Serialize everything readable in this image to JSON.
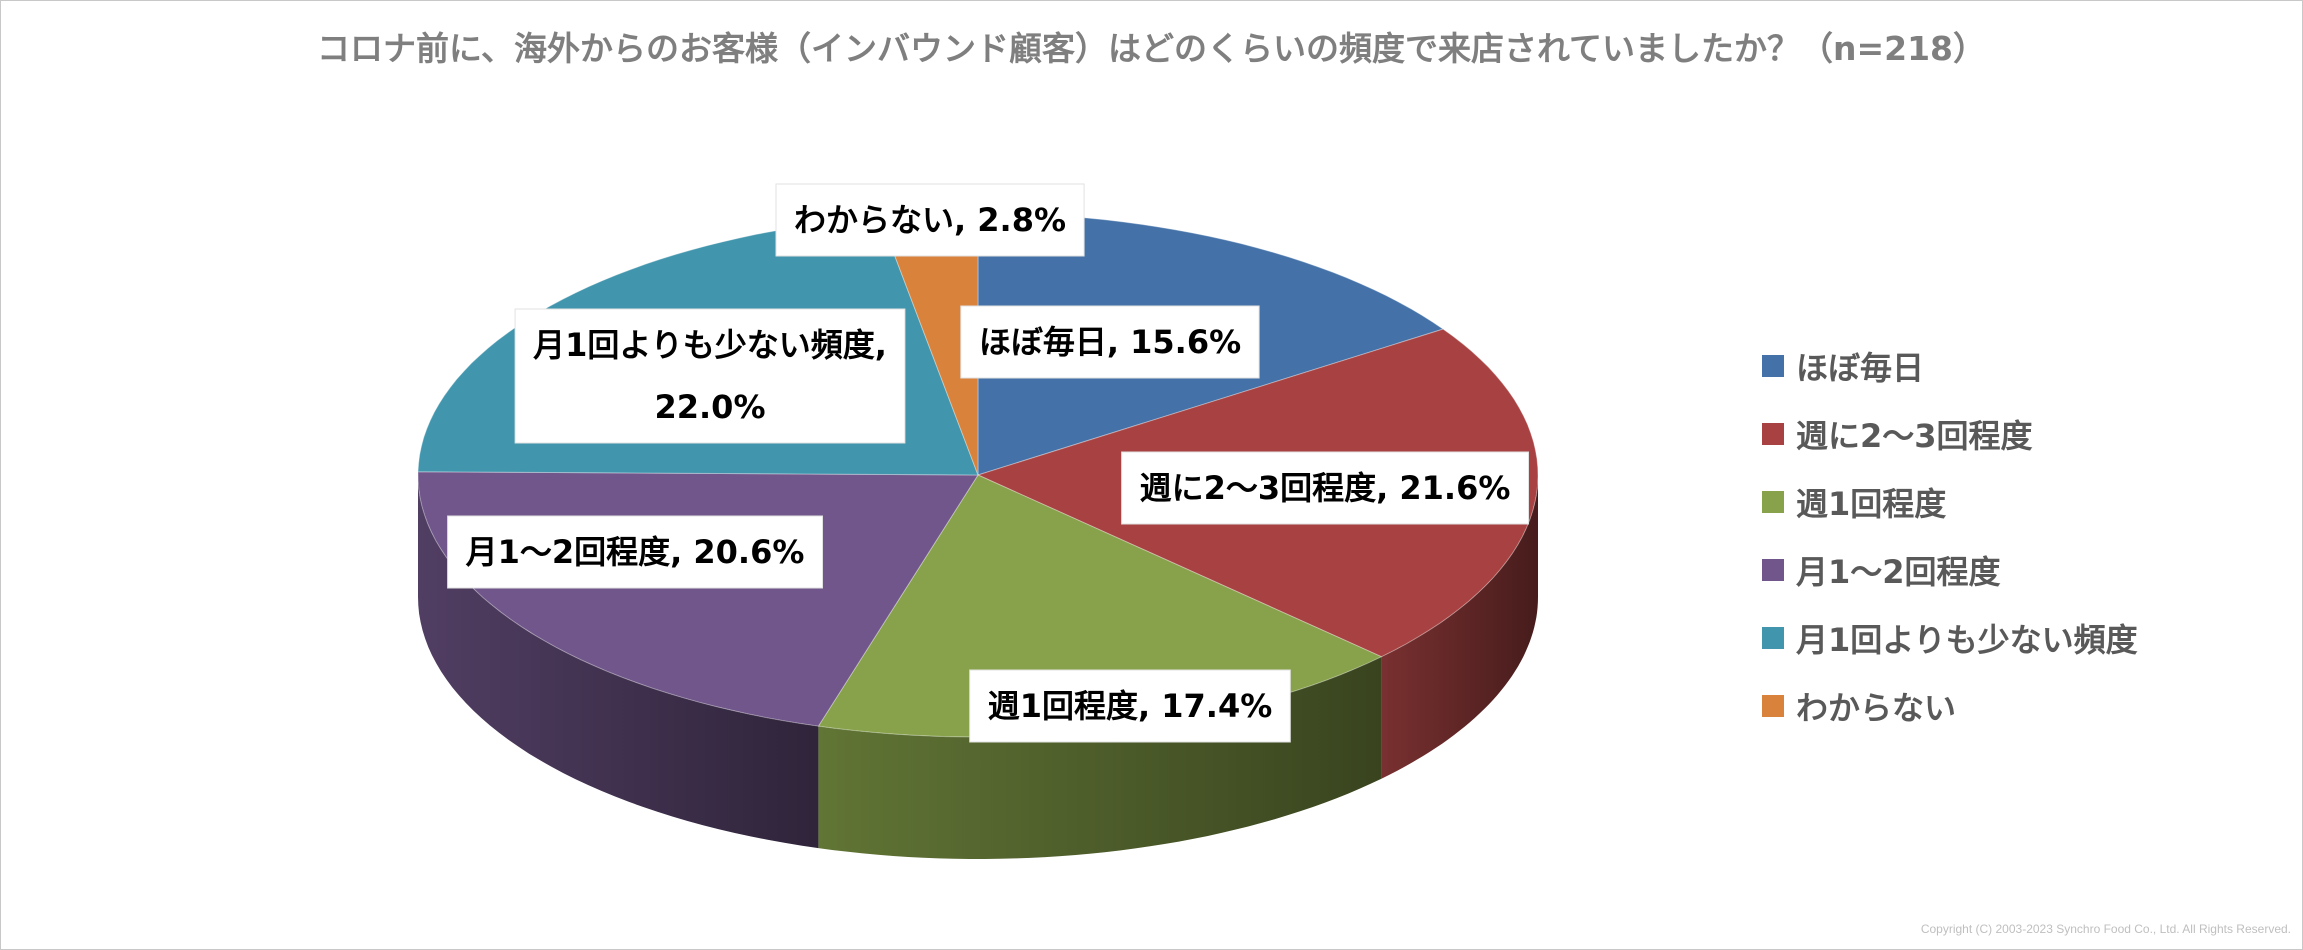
{
  "chart_data": {
    "type": "pie",
    "title": "コロナ前に、海外からのお客様（インバウンド顧客）はどのくらいの頻度で来店されていましたか？（n=218）",
    "categories": [
      "ほぼ毎日",
      "週に2～3回程度",
      "週1回程度",
      "月1～2回程度",
      "月1回よりも少ない頻度",
      "わからない"
    ],
    "values": [
      15.6,
      21.6,
      17.4,
      20.6,
      22.0,
      2.8
    ],
    "data_labels": [
      [
        "ほぼ毎日, 15.6%"
      ],
      [
        "週に2～3回程度, 21.6%"
      ],
      [
        "週1回程度, 17.4%"
      ],
      [
        "月1～2回程度, 20.6%"
      ],
      [
        "月1回よりも少ない頻度,",
        "22.0%"
      ],
      [
        "わからない, 2.8%"
      ]
    ],
    "colors": [
      "#4472a8",
      "#a84242",
      "#87a24a",
      "#70568a",
      "#4195ad",
      "#d9823c"
    ],
    "legend": "right",
    "style": "3d"
  },
  "footer": {
    "copyright": "Copyright (C) 2003-2023   Synchro Food Co., Ltd. All Rights Reserved."
  }
}
